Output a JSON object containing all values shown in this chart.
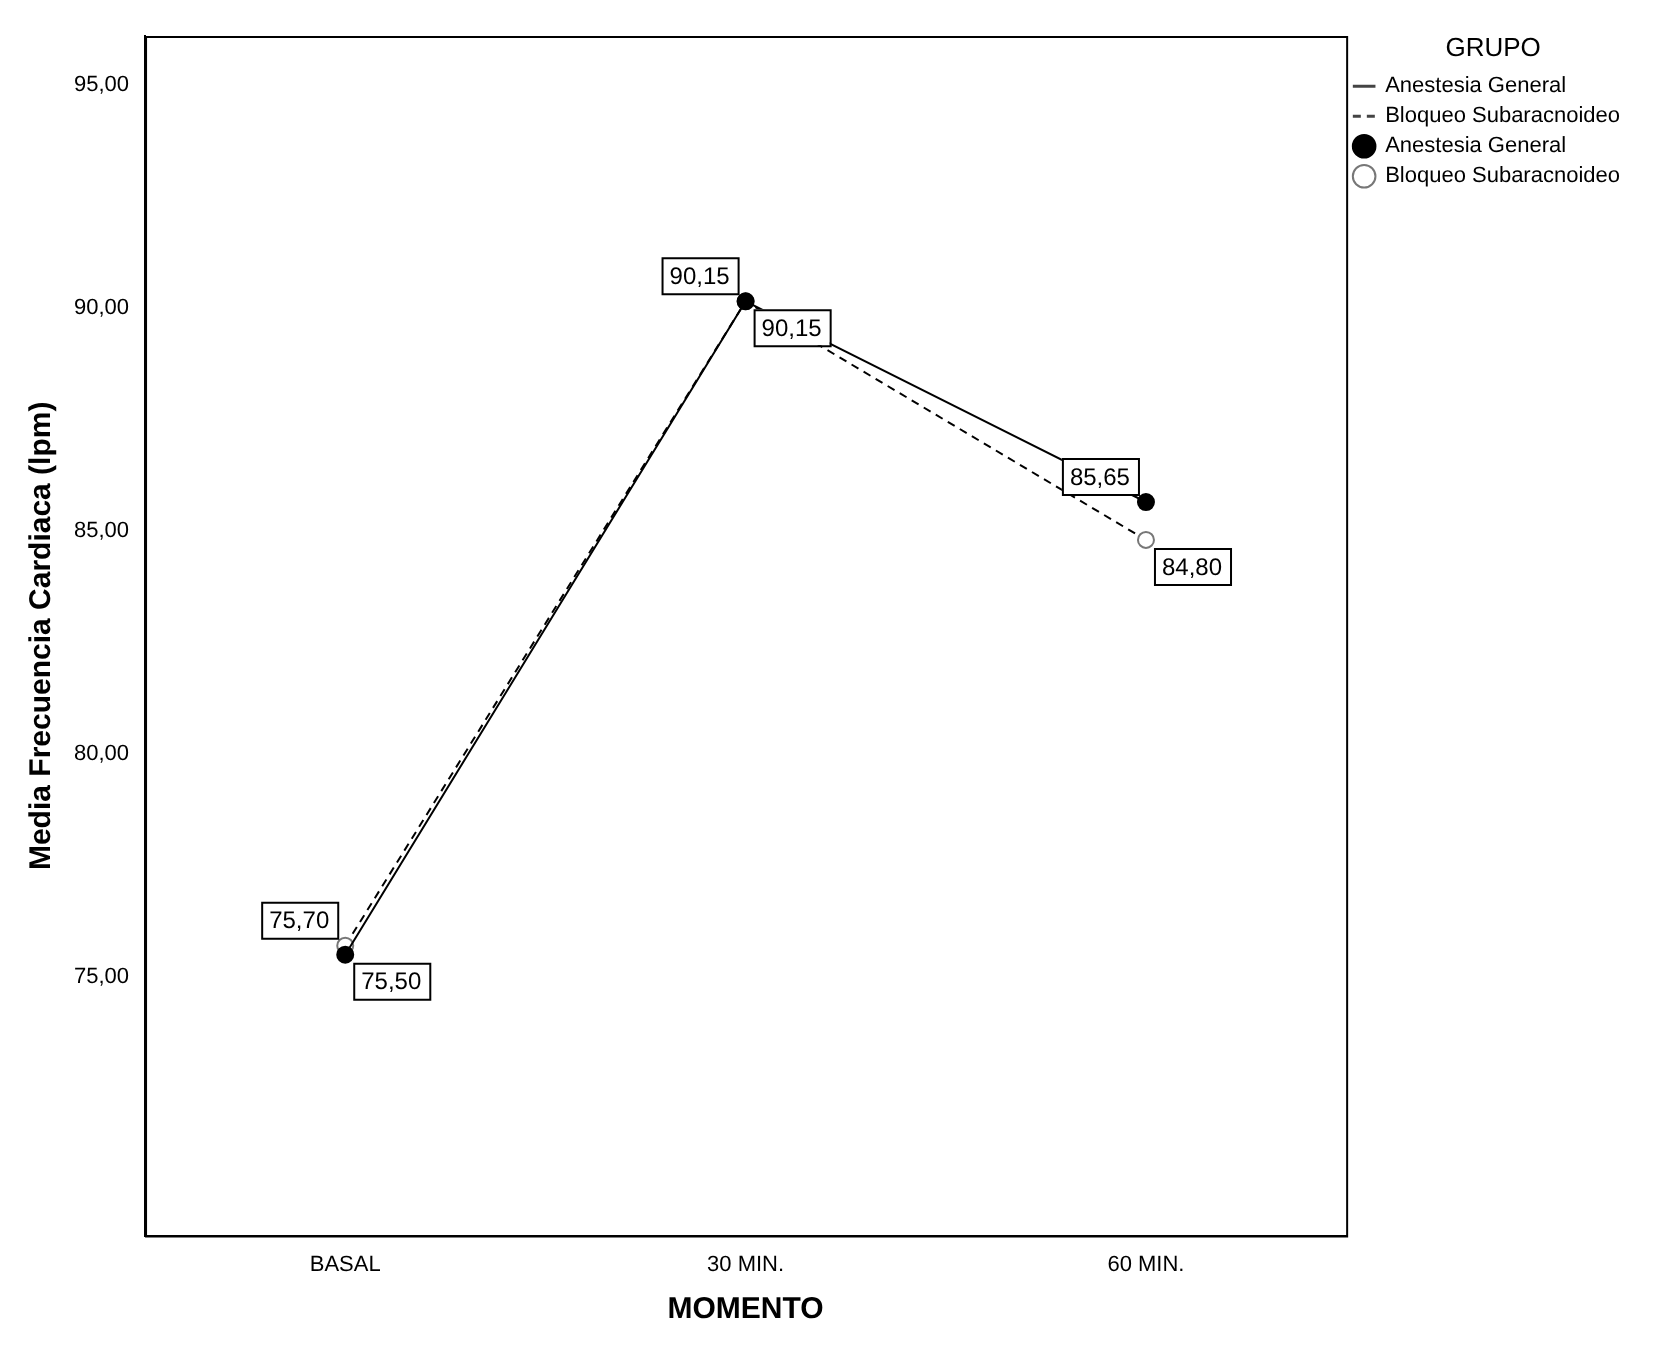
{
  "chart_data": {
    "type": "line",
    "xlabel": "MOMENTO",
    "ylabel": "Media Frecuencia Cardiaca (lpm)",
    "legend_title": "GRUPO",
    "categories": [
      "BASAL",
      "30 MIN.",
      "60 MIN."
    ],
    "series": [
      {
        "name": "Anestesia General",
        "color": "#000000",
        "line_style": "solid",
        "values": [
          75.5,
          90.15,
          85.65
        ],
        "value_labels": [
          "75,50",
          "90,15",
          "85,65"
        ]
      },
      {
        "name": "Bloqueo Subaracnoideo",
        "color": "#000000",
        "line_style": "dashed",
        "values": [
          75.7,
          90.15,
          84.8
        ],
        "value_labels": [
          "75,70",
          "90,15",
          "84,80"
        ]
      }
    ],
    "ylim": [
      69.2,
      96.1
    ],
    "yticks": [
      {
        "value": 75,
        "label": "75,00"
      },
      {
        "value": 80,
        "label": "80,00"
      },
      {
        "value": 85,
        "label": "85,00"
      },
      {
        "value": 90,
        "label": "90,00"
      },
      {
        "value": 95,
        "label": "95,00"
      }
    ],
    "grid": false,
    "legend": "right",
    "marker": "circle"
  }
}
